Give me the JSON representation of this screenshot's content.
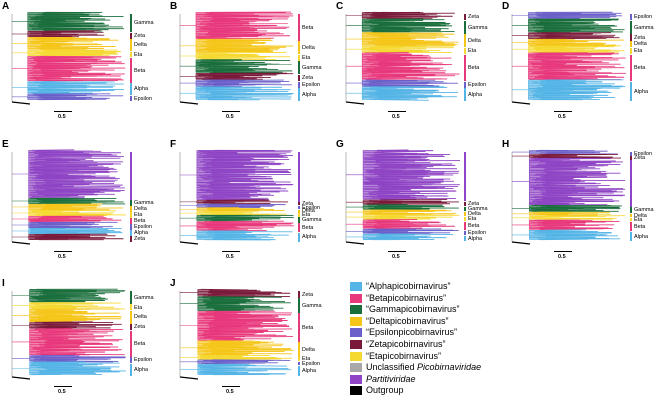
{
  "scale_label": "0.5",
  "colors": {
    "Alpha": "#54b4e6",
    "Beta": "#e8387c",
    "Gamma": "#1a6e3c",
    "Delta": "#f5c518",
    "Epsilon": "#6b5fc9",
    "Zeta": "#7a1a3a",
    "Eta": "#f5d830",
    "Unclassified": "#a8a8a8",
    "Partitiviridae": "#8e44c4",
    "Outgroup": "#000000"
  },
  "panels": [
    {
      "letter": "A",
      "clades": [
        {
          "label": "Gamma",
          "group": "Gamma",
          "size": 3
        },
        {
          "label": "Zeta",
          "group": "Zeta",
          "size": 1
        },
        {
          "label": "Delta",
          "group": "Delta",
          "size": 2
        },
        {
          "label": "Eta",
          "group": "Eta",
          "size": 1
        },
        {
          "label": "Beta",
          "group": "Beta",
          "size": 4
        },
        {
          "label": "Alpha",
          "group": "Alpha",
          "size": 2
        },
        {
          "label": "Epsilon",
          "group": "Epsilon",
          "size": 1
        }
      ]
    },
    {
      "letter": "B",
      "clades": [
        {
          "label": "Beta",
          "group": "Beta",
          "size": 4
        },
        {
          "label": "Delta",
          "group": "Delta",
          "size": 2
        },
        {
          "label": "Eta",
          "group": "Eta",
          "size": 1
        },
        {
          "label": "Gamma",
          "group": "Gamma",
          "size": 2
        },
        {
          "label": "Zeta",
          "group": "Zeta",
          "size": 1
        },
        {
          "label": "Epsilon",
          "group": "Epsilon",
          "size": 1
        },
        {
          "label": "Alpha",
          "group": "Alpha",
          "size": 2
        }
      ]
    },
    {
      "letter": "C",
      "clades": [
        {
          "label": "Zeta",
          "group": "Zeta",
          "size": 1
        },
        {
          "label": "Gamma",
          "group": "Gamma",
          "size": 2
        },
        {
          "label": "Delta",
          "group": "Delta",
          "size": 2
        },
        {
          "label": "Eta",
          "group": "Eta",
          "size": 1
        },
        {
          "label": "Beta",
          "group": "Beta",
          "size": 4
        },
        {
          "label": "Epsilon",
          "group": "Epsilon",
          "size": 1
        },
        {
          "label": "Alpha",
          "group": "Alpha",
          "size": 2
        }
      ]
    },
    {
      "letter": "D",
      "clades": [
        {
          "label": "Epsilon",
          "group": "Epsilon",
          "size": 1
        },
        {
          "label": "Gamma",
          "group": "Gamma",
          "size": 2
        },
        {
          "label": "Zeta",
          "group": "Zeta",
          "size": 1
        },
        {
          "label": "Delta",
          "group": "Delta",
          "size": 1
        },
        {
          "label": "Eta",
          "group": "Eta",
          "size": 1
        },
        {
          "label": "Beta",
          "group": "Beta",
          "size": 4
        },
        {
          "label": "Alpha",
          "group": "Alpha",
          "size": 3
        }
      ]
    },
    {
      "letter": "E",
      "clades": [
        {
          "label": "",
          "group": "Partitiviridae",
          "size": 8
        },
        {
          "label": "Gamma",
          "group": "Gamma",
          "size": 1
        },
        {
          "label": "Delta",
          "group": "Delta",
          "size": 1
        },
        {
          "label": "Eta",
          "group": "Eta",
          "size": 1
        },
        {
          "label": "Beta",
          "group": "Beta",
          "size": 1
        },
        {
          "label": "Epsilon",
          "group": "Epsilon",
          "size": 1
        },
        {
          "label": "Alpha",
          "group": "Alpha",
          "size": 1
        },
        {
          "label": "Zeta",
          "group": "Zeta",
          "size": 1
        }
      ]
    },
    {
      "letter": "F",
      "clades": [
        {
          "label": "",
          "group": "Partitiviridae",
          "size": 8
        },
        {
          "label": "Zeta",
          "group": "Zeta",
          "size": 0.6
        },
        {
          "label": "Epsilon",
          "group": "Epsilon",
          "size": 0.6
        },
        {
          "label": "Delta",
          "group": "Delta",
          "size": 0.6
        },
        {
          "label": "Eta",
          "group": "Eta",
          "size": 0.6
        },
        {
          "label": "Gamma",
          "group": "Gamma",
          "size": 1
        },
        {
          "label": "Beta",
          "group": "Beta",
          "size": 1.5
        },
        {
          "label": "Alpha",
          "group": "Alpha",
          "size": 1.5
        }
      ]
    },
    {
      "letter": "G",
      "clades": [
        {
          "label": "",
          "group": "Partitiviridae",
          "size": 8
        },
        {
          "label": "Zeta",
          "group": "Zeta",
          "size": 0.8
        },
        {
          "label": "Gamma",
          "group": "Gamma",
          "size": 0.8
        },
        {
          "label": "Delta",
          "group": "Delta",
          "size": 0.8
        },
        {
          "label": "Eta",
          "group": "Eta",
          "size": 0.8
        },
        {
          "label": "Beta",
          "group": "Beta",
          "size": 1.5
        },
        {
          "label": "Epsilon",
          "group": "Epsilon",
          "size": 0.8
        },
        {
          "label": "Alpha",
          "group": "Alpha",
          "size": 1
        }
      ]
    },
    {
      "letter": "H",
      "clades": [
        {
          "label": "Epsilon",
          "group": "Epsilon",
          "size": 0.6
        },
        {
          "label": "Zeta",
          "group": "Zeta",
          "size": 0.6
        },
        {
          "label": "",
          "group": "Partitiviridae",
          "size": 7
        },
        {
          "label": "Gamma",
          "group": "Gamma",
          "size": 1
        },
        {
          "label": "Delta",
          "group": "Delta",
          "size": 0.6
        },
        {
          "label": "Eta",
          "group": "Eta",
          "size": 0.6
        },
        {
          "label": "Beta",
          "group": "Beta",
          "size": 1.5
        },
        {
          "label": "Alpha",
          "group": "Alpha",
          "size": 1.5
        }
      ]
    },
    {
      "letter": "I",
      "clades": [
        {
          "label": "Gamma",
          "group": "Gamma",
          "size": 2
        },
        {
          "label": "Eta",
          "group": "Eta",
          "size": 1
        },
        {
          "label": "Delta",
          "group": "Delta",
          "size": 2
        },
        {
          "label": "Zeta",
          "group": "Zeta",
          "size": 1
        },
        {
          "label": "Beta",
          "group": "Beta",
          "size": 4
        },
        {
          "label": "Epsilon",
          "group": "Epsilon",
          "size": 1
        },
        {
          "label": "Alpha",
          "group": "Alpha",
          "size": 2
        }
      ]
    },
    {
      "letter": "J",
      "clades": [
        {
          "label": "Zeta",
          "group": "Zeta",
          "size": 1
        },
        {
          "label": "Gamma",
          "group": "Gamma",
          "size": 2
        },
        {
          "label": "Beta",
          "group": "Beta",
          "size": 4
        },
        {
          "label": "Delta",
          "group": "Delta",
          "size": 2
        },
        {
          "label": "Eta",
          "group": "Eta",
          "size": 0.6
        },
        {
          "label": "Epsilon",
          "group": "Epsilon",
          "size": 0.6
        },
        {
          "label": "Alpha",
          "group": "Alpha",
          "size": 1.5
        }
      ]
    }
  ],
  "legend": [
    {
      "group": "Alpha",
      "text": "“Alphapicobirnavirus”",
      "italic": false
    },
    {
      "group": "Beta",
      "text": "“Betapicobirnavirus”",
      "italic": false
    },
    {
      "group": "Gamma",
      "text": "“Gammapicobirnavirus”",
      "italic": false
    },
    {
      "group": "Delta",
      "text": "“Deltapicobirnavirus”",
      "italic": false
    },
    {
      "group": "Epsilon",
      "text": "“Epsilonpicobirnavirus”",
      "italic": false
    },
    {
      "group": "Zeta",
      "text": "“Zetapicobirnavirus”",
      "italic": false
    },
    {
      "group": "Eta",
      "text": "“Etapicobirnavirus”",
      "italic": false
    },
    {
      "group": "Unclassified",
      "text": "Unclassified",
      "italic_text": "Picobirnaviridae",
      "italic": false
    },
    {
      "group": "Partitiviridae",
      "text": "Partitiviridae",
      "italic": true
    },
    {
      "group": "Outgroup",
      "text": "Outgroup",
      "italic": false
    }
  ]
}
